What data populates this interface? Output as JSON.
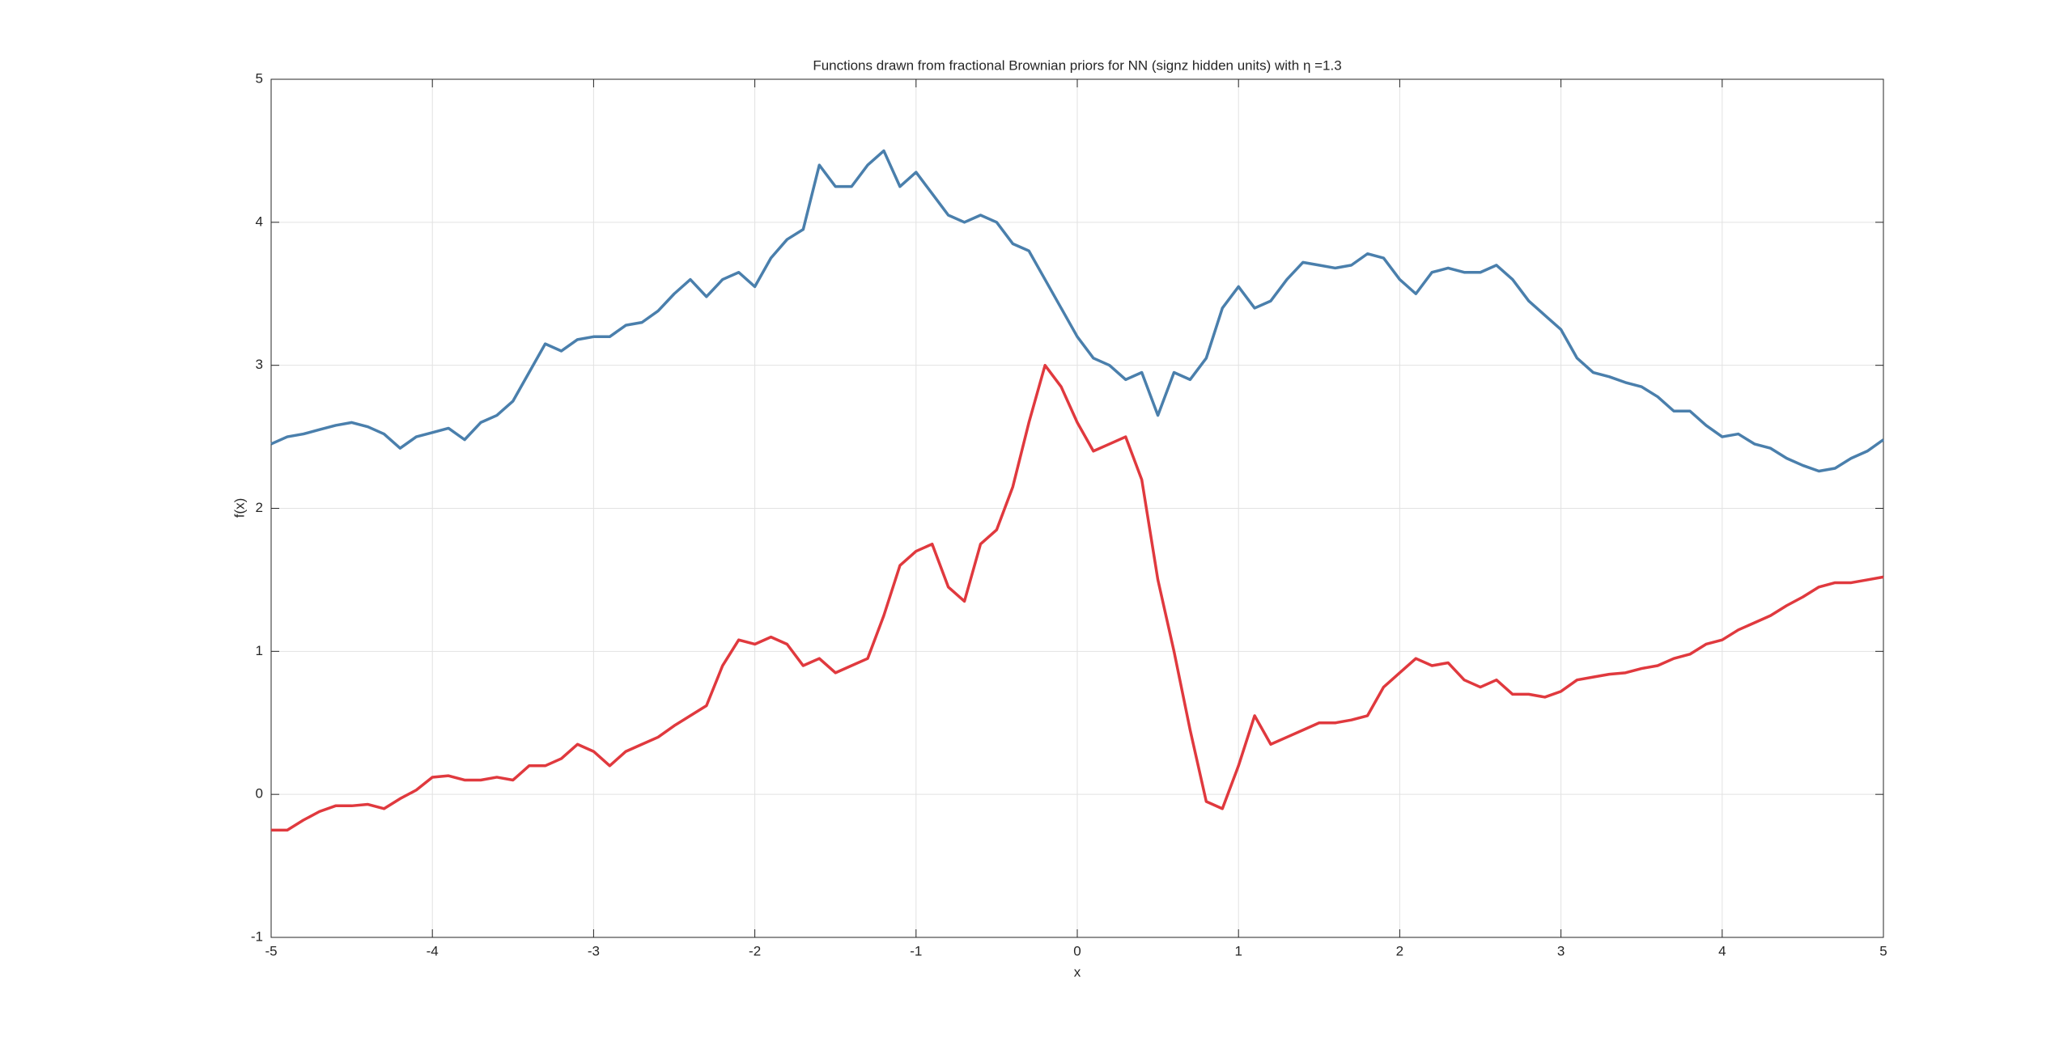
{
  "chart_data": {
    "type": "line",
    "title": "Functions drawn from fractional Brownian priors for NN (signz hidden units) with η =1.3",
    "xlabel": "x",
    "ylabel": "f(x)",
    "x": [
      -5,
      -4.9,
      -4.8,
      -4.7,
      -4.6,
      -4.5,
      -4.4,
      -4.3,
      -4.2,
      -4.1,
      -4,
      -3.9,
      -3.8,
      -3.7,
      -3.6,
      -3.5,
      -3.4,
      -3.3,
      -3.2,
      -3.1,
      -3,
      -2.9,
      -2.8,
      -2.7,
      -2.6,
      -2.5,
      -2.4,
      -2.3,
      -2.2,
      -2.1,
      -2,
      -1.9,
      -1.8,
      -1.7,
      -1.6,
      -1.5,
      -1.4,
      -1.3,
      -1.2,
      -1.1,
      -1,
      -0.9,
      -0.8,
      -0.7,
      -0.6,
      -0.5,
      -0.4,
      -0.3,
      -0.2,
      -0.1,
      0,
      0.1,
      0.2,
      0.3,
      0.4,
      0.5,
      0.6,
      0.7,
      0.8,
      0.9,
      1,
      1.1,
      1.2,
      1.3,
      1.4,
      1.5,
      1.6,
      1.7,
      1.8,
      1.9,
      2,
      2.1,
      2.2,
      2.3,
      2.4,
      2.5,
      2.6,
      2.7,
      2.8,
      2.9,
      3,
      3.1,
      3.2,
      3.3,
      3.4,
      3.5,
      3.6,
      3.7,
      3.8,
      3.9,
      4,
      4.1,
      4.2,
      4.3,
      4.4,
      4.5,
      4.6,
      4.7,
      4.8,
      4.9,
      5
    ],
    "series": [
      {
        "color": "#4a7fac",
        "values": [
          2.45,
          2.5,
          2.52,
          2.55,
          2.58,
          2.6,
          2.57,
          2.52,
          2.42,
          2.5,
          2.53,
          2.56,
          2.48,
          2.6,
          2.65,
          2.75,
          2.95,
          3.15,
          3.1,
          3.18,
          3.2,
          3.2,
          3.28,
          3.3,
          3.38,
          3.5,
          3.6,
          3.48,
          3.6,
          3.65,
          3.55,
          3.75,
          3.88,
          3.95,
          4.4,
          4.25,
          4.25,
          4.4,
          4.5,
          4.25,
          4.35,
          4.2,
          4.05,
          4.0,
          4.05,
          4.0,
          3.85,
          3.8,
          3.6,
          3.4,
          3.2,
          3.05,
          3.0,
          2.9,
          2.95,
          2.65,
          2.95,
          2.9,
          3.05,
          3.4,
          3.55,
          3.4,
          3.45,
          3.6,
          3.72,
          3.7,
          3.68,
          3.7,
          3.78,
          3.75,
          3.6,
          3.5,
          3.65,
          3.68,
          3.65,
          3.65,
          3.7,
          3.6,
          3.45,
          3.35,
          3.25,
          3.05,
          2.95,
          2.92,
          2.88,
          2.85,
          2.78,
          2.68,
          2.68,
          2.58,
          2.5,
          2.52,
          2.45,
          2.42,
          2.35,
          2.3,
          2.26,
          2.28,
          2.35,
          2.4,
          2.48
        ]
      },
      {
        "color": "#e0393e",
        "values": [
          -0.25,
          -0.25,
          -0.18,
          -0.12,
          -0.08,
          -0.08,
          -0.07,
          -0.1,
          -0.03,
          0.03,
          0.12,
          0.13,
          0.1,
          0.1,
          0.12,
          0.1,
          0.2,
          0.2,
          0.25,
          0.35,
          0.3,
          0.2,
          0.3,
          0.35,
          0.4,
          0.48,
          0.55,
          0.62,
          0.9,
          1.08,
          1.05,
          1.1,
          1.05,
          0.9,
          0.95,
          0.85,
          0.9,
          0.95,
          1.25,
          1.6,
          1.7,
          1.75,
          1.45,
          1.35,
          1.75,
          1.85,
          2.15,
          2.6,
          3.0,
          2.85,
          2.6,
          2.4,
          2.45,
          2.5,
          2.2,
          1.5,
          1.0,
          0.45,
          -0.05,
          -0.1,
          0.2,
          0.55,
          0.35,
          0.4,
          0.45,
          0.5,
          0.5,
          0.52,
          0.55,
          0.75,
          0.85,
          0.95,
          0.9,
          0.92,
          0.8,
          0.75,
          0.8,
          0.7,
          0.7,
          0.68,
          0.72,
          0.8,
          0.82,
          0.84,
          0.85,
          0.88,
          0.9,
          0.95,
          0.98,
          1.05,
          1.08,
          1.15,
          1.2,
          1.25,
          1.32,
          1.38,
          1.45,
          1.48,
          1.48,
          1.5,
          1.52
        ]
      }
    ],
    "xlim": [
      -5,
      5
    ],
    "xticks": [
      -5,
      -4,
      -3,
      -2,
      -1,
      0,
      1,
      2,
      3,
      4,
      5
    ],
    "ylim": [
      -1,
      5
    ],
    "yticks": [
      -1,
      0,
      1,
      2,
      3,
      4,
      5
    ],
    "grid": true
  }
}
